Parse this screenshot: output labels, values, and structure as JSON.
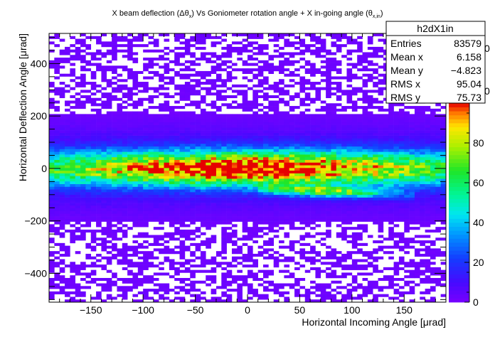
{
  "chart_data": {
    "type": "heatmap",
    "title": {
      "part1": "X beam deflection (",
      "delta": "Δθ",
      "sub1": "x",
      "part2": ") Vs Goniometer rotation angle + X in-going angle (",
      "theta": "θ",
      "sub2": "x,in",
      "part3": ")"
    },
    "xlabel": "Horizontal Incoming Angle [μrad]",
    "ylabel": "Horizontal Deflection Angle [μrad]",
    "xlim": [
      -190,
      190
    ],
    "ylim": [
      -510,
      515
    ],
    "xticks": [
      -150,
      -100,
      -50,
      0,
      50,
      100,
      150
    ],
    "xtick_labels": [
      "−150",
      "−100",
      "−50",
      "0",
      "50",
      "100",
      "150"
    ],
    "yticks": [
      -400,
      -200,
      0,
      200,
      400
    ],
    "ytick_labels": [
      "−400",
      "−200",
      "0",
      "200",
      "400"
    ],
    "zlim": [
      0,
      100
    ],
    "zticks": [
      0,
      20,
      40,
      60,
      80
    ],
    "grid": false,
    "palette": "ROOT kBird-like (violet → blue → cyan → green → yellow → red)",
    "bins": {
      "nx": 76,
      "ny": 100
    },
    "density_model": {
      "core_center_y": 0,
      "core_sigma_y": 45,
      "core_peak_counts": 100,
      "secondary_band_center_y": -85,
      "secondary_band_x_range": [
        10,
        160
      ],
      "secondary_band_peak_counts": 55,
      "halo_counts": 3
    },
    "stats_box": {
      "name": "h2dX1in",
      "rows": [
        {
          "label": "Entries",
          "value": "83579"
        },
        {
          "label": "Mean x",
          "value": "6.158"
        },
        {
          "label": "Mean y",
          "value": "−4.823"
        },
        {
          "label": "RMS x",
          "value": "95.04"
        },
        {
          "label": "RMS y",
          "value": "75.73"
        }
      ]
    },
    "palette_partial_labels": [
      "0",
      "0"
    ]
  }
}
